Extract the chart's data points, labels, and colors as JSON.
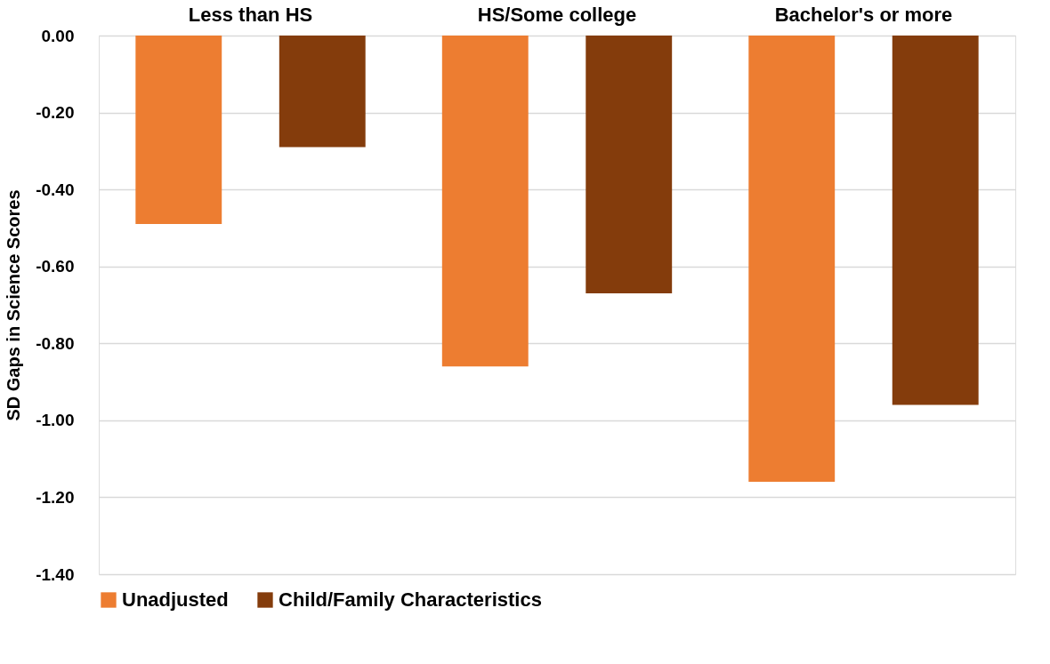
{
  "chart_data": {
    "type": "bar",
    "ylabel": "SD Gaps in Science Scores",
    "categories": [
      "Less than HS",
      "HS/Some college",
      "Bachelor's or more"
    ],
    "series": [
      {
        "name": "Unadjusted",
        "color": "#ed7d31",
        "values": [
          -0.49,
          -0.86,
          -1.16
        ]
      },
      {
        "name": "Child/Family Characteristics",
        "color": "#843c0c",
        "values": [
          -0.29,
          -0.67,
          -0.96
        ]
      }
    ],
    "ylim": [
      -1.4,
      0
    ],
    "yticks": [
      {
        "value": -1.4,
        "label": "-1.40"
      },
      {
        "value": -1.2,
        "label": "-1.20"
      },
      {
        "value": -1.0,
        "label": "-1.00"
      },
      {
        "value": -0.8,
        "label": "-0.80"
      },
      {
        "value": -0.6,
        "label": "-0.60"
      },
      {
        "value": -0.4,
        "label": "-0.40"
      },
      {
        "value": -0.2,
        "label": "-0.20"
      },
      {
        "value": 0,
        "label": "0.00"
      }
    ],
    "grid": "y",
    "legend": "bottom"
  }
}
